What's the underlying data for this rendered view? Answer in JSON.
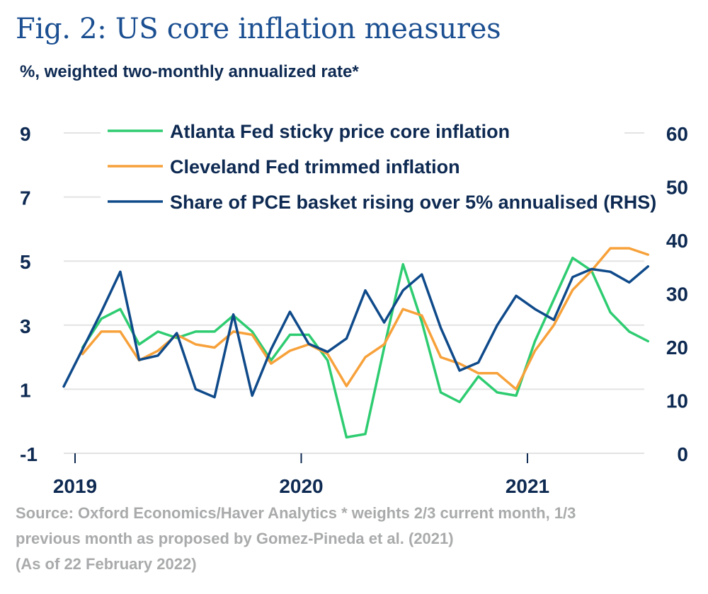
{
  "title": "Fig. 2: US core inflation measures",
  "subtitle": "%, weighted two-monthly annualized rate*",
  "source": {
    "line1": "Source: Oxford Economics/Haver Analytics * weights 2/3 current month, 1/3",
    "line2": "previous month as proposed by Gomez-Pineda et al. (2021)",
    "line3": "(As of 22 February 2022)"
  },
  "colors": {
    "sticky": "#2ecc71",
    "trimmed": "#f7a13a",
    "share": "#0f4a8a",
    "grid": "#e3e3e3",
    "axis": "#0e2a52"
  },
  "chart_data": {
    "type": "line",
    "title": "Fig. 2: US core inflation measures",
    "ylabel_left": "%, weighted two-monthly annualized rate*",
    "ylim_left": [
      -1,
      9
    ],
    "yticks_left": [
      -1,
      1,
      3,
      5,
      7,
      9
    ],
    "ytick_labels_left": [
      "-1",
      "1",
      "3",
      "5",
      "7",
      "9"
    ],
    "ylim_right": [
      0,
      60
    ],
    "yticks_right": [
      0,
      10,
      20,
      30,
      40,
      50,
      60
    ],
    "ytick_labels_right": [
      "0",
      "10",
      "20",
      "30",
      "40",
      "50",
      "60"
    ],
    "xticks": [
      0,
      12,
      24
    ],
    "xtick_labels": [
      "2019",
      "2020",
      "2021"
    ],
    "xlim": [
      0,
      30.8
    ],
    "legend_position": "top",
    "series": [
      {
        "name": "Atlanta Fed sticky price core inflation",
        "axis": "left",
        "color_key": "sticky",
        "x": [
          1,
          2,
          3,
          4,
          5,
          6,
          7,
          8,
          9,
          10,
          11,
          12,
          13,
          14,
          15,
          16,
          17,
          18,
          19,
          20,
          21,
          22,
          23,
          24,
          25,
          26,
          27,
          28,
          29,
          30,
          31
        ],
        "values": [
          2.3,
          3.2,
          3.5,
          2.4,
          2.8,
          2.6,
          2.8,
          2.8,
          3.3,
          2.8,
          1.9,
          2.7,
          2.7,
          1.9,
          -0.5,
          -0.4,
          2.3,
          4.9,
          3.1,
          0.9,
          0.6,
          1.4,
          0.9,
          0.8,
          2.5,
          3.8,
          5.1,
          4.7,
          3.4,
          2.8,
          2.5
        ]
      },
      {
        "name": "Cleveland Fed trimmed inflation",
        "axis": "left",
        "color_key": "trimmed",
        "x": [
          1,
          2,
          3,
          4,
          5,
          6,
          7,
          8,
          9,
          10,
          11,
          12,
          13,
          14,
          15,
          16,
          17,
          18,
          19,
          20,
          21,
          22,
          23,
          24,
          25,
          26,
          27,
          28,
          29,
          30,
          31
        ],
        "values": [
          2.1,
          2.8,
          2.8,
          1.9,
          2.2,
          2.7,
          2.4,
          2.3,
          2.8,
          2.7,
          1.8,
          2.2,
          2.4,
          2.1,
          1.1,
          2.0,
          2.4,
          3.5,
          3.3,
          2.0,
          1.8,
          1.5,
          1.5,
          1.0,
          2.2,
          3.0,
          4.1,
          4.7,
          5.4,
          5.4,
          5.2
        ]
      },
      {
        "name": "Share of PCE basket rising over 5% annualised (RHS)",
        "axis": "right",
        "color_key": "share",
        "x": [
          0,
          1,
          2,
          3,
          4,
          5,
          6,
          7,
          8,
          9,
          10,
          11,
          12,
          13,
          14,
          15,
          16,
          17,
          18,
          19,
          20,
          21,
          22,
          23,
          24,
          25,
          26,
          27,
          28,
          29,
          30,
          31
        ],
        "values": [
          12.5,
          19.5,
          26.5,
          34,
          17.5,
          18.3,
          22.5,
          12,
          10.5,
          26,
          10.8,
          19.5,
          26.5,
          20.5,
          19,
          21.5,
          30.5,
          24.5,
          30.5,
          33.5,
          23.5,
          15.5,
          17,
          24,
          29.5,
          27,
          25,
          33,
          34.5,
          34,
          32,
          35
        ]
      }
    ]
  }
}
